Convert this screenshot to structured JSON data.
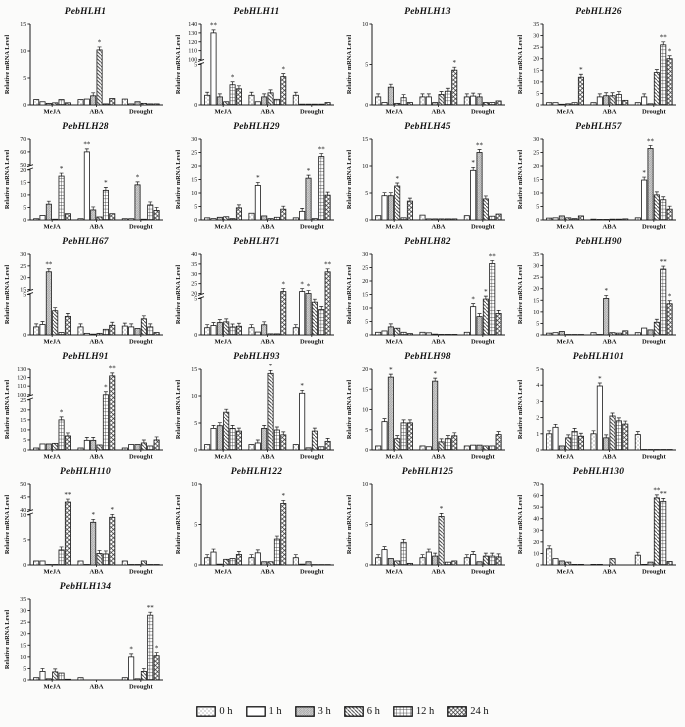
{
  "figure": {
    "y_axis_label": "Relative mRNA Level",
    "treatments": [
      "MeJA",
      "ABA",
      "Drought"
    ],
    "timepoints": [
      "0 h",
      "1 h",
      "3 h",
      "6 h",
      "12 h",
      "24 h"
    ],
    "legend": [
      {
        "label": "0 h",
        "pattern": "dots"
      },
      {
        "label": "1 h",
        "pattern": "plain"
      },
      {
        "label": "3 h",
        "pattern": "diag"
      },
      {
        "label": "6 h",
        "pattern": "backdiag"
      },
      {
        "label": "12 h",
        "pattern": "grid"
      },
      {
        "label": "24 h",
        "pattern": "cross"
      }
    ],
    "bar_outline_color": "#1a1a1a",
    "significance_marks": [
      "*",
      "**"
    ]
  },
  "chart_data": [
    {
      "type": "bar",
      "title": "PebHLH1",
      "ylim": [
        0,
        15
      ],
      "yticks": [
        0,
        5,
        10,
        15
      ],
      "series": {
        "MeJA": [
          1.0,
          0.6,
          0.3,
          0.4,
          1.0,
          0.4
        ],
        "ABA": [
          1.0,
          1.1,
          1.7,
          10.2,
          0.2,
          1.2
        ],
        "Drought": [
          1.1,
          0.2,
          0.6,
          0.3,
          0.2,
          0.2
        ]
      },
      "sig": [
        {
          "treatment": "ABA",
          "time": "6 h",
          "mark": "*"
        }
      ]
    },
    {
      "type": "bar",
      "title": "PebHLH11",
      "axis_break": {
        "lower": [
          0,
          5
        ],
        "upper": [
          100,
          140
        ],
        "lower_ticks": [
          0,
          5
        ],
        "upper_ticks": [
          100,
          110,
          120,
          130,
          140
        ],
        "lower_frac": 0.5
      },
      "series": {
        "MeJA": [
          1.2,
          130,
          1.0,
          0.4,
          2.5,
          2.0
        ],
        "ABA": [
          1.2,
          0.4,
          1.0,
          1.5,
          0.7,
          3.5
        ],
        "Drought": [
          1.2,
          0.1,
          0.1,
          0.1,
          0.1,
          0.3
        ]
      },
      "sig": [
        {
          "treatment": "MeJA",
          "time": "1 h",
          "mark": "**"
        },
        {
          "treatment": "MeJA",
          "time": "12 h",
          "mark": "*"
        },
        {
          "treatment": "ABA",
          "time": "24 h",
          "mark": "*"
        }
      ]
    },
    {
      "type": "bar",
      "title": "PebHLH13",
      "ylim": [
        0,
        10
      ],
      "yticks": [
        0,
        5,
        10
      ],
      "series": {
        "MeJA": [
          1.0,
          0.3,
          2.2,
          0.2,
          0.9,
          0.3
        ],
        "ABA": [
          1.0,
          1.0,
          0.3,
          1.3,
          1.7,
          4.3
        ],
        "Drought": [
          1.0,
          1.1,
          1.0,
          0.3,
          0.3,
          0.5
        ]
      },
      "sig": [
        {
          "treatment": "ABA",
          "time": "24 h",
          "mark": "*"
        }
      ]
    },
    {
      "type": "bar",
      "title": "PebHLH26",
      "ylim": [
        0,
        35
      ],
      "yticks": [
        0,
        5,
        10,
        15,
        20,
        25,
        30,
        35
      ],
      "series": {
        "MeJA": [
          1.0,
          1.0,
          0.3,
          0.5,
          1.0,
          12.0
        ],
        "ABA": [
          1.0,
          3.5,
          4.0,
          4.0,
          4.5,
          2.0
        ],
        "Drought": [
          1.0,
          3.5,
          0.5,
          14.0,
          26.0,
          20.0
        ]
      },
      "sig": [
        {
          "treatment": "MeJA",
          "time": "24 h",
          "mark": "*"
        },
        {
          "treatment": "Drought",
          "time": "12 h",
          "mark": "**"
        },
        {
          "treatment": "Drought",
          "time": "24 h",
          "mark": "*"
        }
      ]
    },
    {
      "type": "bar",
      "title": "PebHLH28",
      "axis_break": {
        "lower": [
          0,
          20
        ],
        "upper": [
          50,
          70
        ],
        "lower_ticks": [
          0,
          5,
          10,
          15,
          20
        ],
        "upper_ticks": [
          50,
          60,
          70
        ],
        "lower_frac": 0.62
      },
      "series": {
        "MeJA": [
          0.5,
          1.8,
          6.3,
          0.3,
          17.5,
          2.5
        ],
        "ABA": [
          0.5,
          60.0,
          4.0,
          1.2,
          11.8,
          2.5
        ],
        "Drought": [
          0.5,
          0.5,
          14.0,
          0.3,
          6.0,
          3.8
        ]
      },
      "sig": [
        {
          "treatment": "MeJA",
          "time": "12 h",
          "mark": "*"
        },
        {
          "treatment": "ABA",
          "time": "1 h",
          "mark": "**"
        },
        {
          "treatment": "ABA",
          "time": "12 h",
          "mark": "*"
        },
        {
          "treatment": "Drought",
          "time": "3 h",
          "mark": "*"
        }
      ]
    },
    {
      "type": "bar",
      "title": "PebHLH29",
      "ylim": [
        0,
        30
      ],
      "yticks": [
        0,
        5,
        10,
        15,
        20,
        25,
        30
      ],
      "series": {
        "MeJA": [
          0.8,
          0.5,
          1.0,
          1.2,
          0.5,
          4.5
        ],
        "ABA": [
          2.5,
          12.8,
          1.5,
          0.5,
          1.0,
          4.0
        ],
        "Drought": [
          0.8,
          3.2,
          15.5,
          0.5,
          23.5,
          9.2
        ]
      },
      "sig": [
        {
          "treatment": "ABA",
          "time": "1 h",
          "mark": "*"
        },
        {
          "treatment": "Drought",
          "time": "3 h",
          "mark": "*"
        },
        {
          "treatment": "Drought",
          "time": "12 h",
          "mark": "**"
        }
      ]
    },
    {
      "type": "bar",
      "title": "PebHLH45",
      "ylim": [
        0,
        15
      ],
      "yticks": [
        0,
        5,
        10,
        15
      ],
      "series": {
        "MeJA": [
          0.8,
          4.5,
          4.5,
          6.3,
          0.4,
          3.5
        ],
        "ABA": [
          0.9,
          0.2,
          0.2,
          0.2,
          0.2,
          0.2
        ],
        "Drought": [
          0.8,
          9.2,
          12.5,
          3.9,
          0.7,
          1.1
        ]
      },
      "sig": [
        {
          "treatment": "MeJA",
          "time": "6 h",
          "mark": "*"
        },
        {
          "treatment": "Drought",
          "time": "1 h",
          "mark": "*"
        },
        {
          "treatment": "Drought",
          "time": "3 h",
          "mark": "**"
        }
      ]
    },
    {
      "type": "bar",
      "title": "PebHLH57",
      "ylim": [
        0,
        30
      ],
      "yticks": [
        0,
        5,
        10,
        15,
        20,
        25,
        30
      ],
      "series": {
        "MeJA": [
          0.7,
          0.8,
          1.5,
          0.8,
          0.5,
          1.5
        ],
        "ABA": [
          0.3,
          0.2,
          0.2,
          0.3,
          0.3,
          0.4
        ],
        "Drought": [
          0.8,
          14.8,
          26.5,
          9.3,
          7.5,
          4.0
        ]
      },
      "sig": [
        {
          "treatment": "Drought",
          "time": "1 h",
          "mark": "*"
        },
        {
          "treatment": "Drought",
          "time": "3 h",
          "mark": "**"
        }
      ]
    },
    {
      "type": "bar",
      "title": "PebHLH67",
      "axis_break": {
        "lower": [
          0,
          5
        ],
        "upper": [
          15,
          30
        ],
        "lower_ticks": [
          0,
          5
        ],
        "upper_ticks": [
          15,
          20,
          25,
          30
        ],
        "lower_frac": 0.5
      },
      "series": {
        "MeJA": [
          1.0,
          1.3,
          22.5,
          3.0,
          0.3,
          2.3
        ],
        "ABA": [
          1.0,
          0.2,
          0.1,
          0.2,
          0.7,
          1.2
        ],
        "Drought": [
          1.1,
          1.0,
          0.8,
          2.0,
          1.0,
          0.3
        ]
      },
      "sig": [
        {
          "treatment": "MeJA",
          "time": "3 h",
          "mark": "**"
        }
      ]
    },
    {
      "type": "bar",
      "title": "PebHLH71",
      "axis_break": {
        "lower": [
          0,
          5
        ],
        "upper": [
          20,
          40
        ],
        "lower_ticks": [
          0,
          5
        ],
        "upper_ticks": [
          20,
          25,
          30,
          35,
          40
        ],
        "lower_frac": 0.45
      },
      "series": {
        "MeJA": [
          1.0,
          1.3,
          1.7,
          1.8,
          1.1,
          1.2
        ],
        "ABA": [
          1.0,
          0.4,
          1.4,
          0.15,
          0.15,
          21.0
        ],
        "Drought": [
          1.0,
          21.0,
          19.5,
          4.5,
          3.5,
          31.0
        ]
      },
      "sig": [
        {
          "treatment": "ABA",
          "time": "24 h",
          "mark": "*"
        },
        {
          "treatment": "Drought",
          "time": "1 h",
          "mark": "*"
        },
        {
          "treatment": "Drought",
          "time": "3 h",
          "mark": "*"
        },
        {
          "treatment": "Drought",
          "time": "24 h",
          "mark": "**"
        }
      ]
    },
    {
      "type": "bar",
      "title": "PebHLH82",
      "ylim": [
        0,
        30
      ],
      "yticks": [
        0,
        5,
        10,
        15,
        20,
        25,
        30
      ],
      "series": {
        "MeJA": [
          1.0,
          1.5,
          3.0,
          2.5,
          1.0,
          0.5
        ],
        "ABA": [
          1.0,
          0.8,
          0.3,
          0.2,
          0.2,
          0.2
        ],
        "Drought": [
          1.0,
          10.5,
          6.8,
          13.3,
          26.5,
          8.0
        ]
      },
      "sig": [
        {
          "treatment": "Drought",
          "time": "1 h",
          "mark": "*"
        },
        {
          "treatment": "Drought",
          "time": "6 h",
          "mark": "*"
        },
        {
          "treatment": "Drought",
          "time": "12 h",
          "mark": "**"
        }
      ]
    },
    {
      "type": "bar",
      "title": "PebHLH90",
      "ylim": [
        0,
        35
      ],
      "yticks": [
        0,
        5,
        10,
        15,
        20,
        25,
        30,
        35
      ],
      "series": {
        "MeJA": [
          0.8,
          1.0,
          1.5,
          0.2,
          0.2,
          0.2
        ],
        "ABA": [
          1.0,
          0.2,
          15.8,
          1.0,
          0.8,
          1.8
        ],
        "Drought": [
          1.0,
          3.0,
          2.2,
          5.5,
          28.5,
          13.5
        ]
      },
      "sig": [
        {
          "treatment": "ABA",
          "time": "3 h",
          "mark": "*"
        },
        {
          "treatment": "Drought",
          "time": "12 h",
          "mark": "**"
        },
        {
          "treatment": "Drought",
          "time": "24 h",
          "mark": "*"
        }
      ]
    },
    {
      "type": "bar",
      "title": "PebHLH91",
      "axis_break": {
        "lower": [
          0,
          25
        ],
        "upper": [
          100,
          130
        ],
        "lower_ticks": [
          0,
          5,
          10,
          15,
          20,
          25
        ],
        "upper_ticks": [
          100,
          110,
          120,
          130
        ],
        "lower_frac": 0.62
      },
      "series": {
        "MeJA": [
          1.0,
          3.0,
          3.0,
          3.3,
          15.0,
          7.0
        ],
        "ABA": [
          1.0,
          4.8,
          4.8,
          2.5,
          100.0,
          122.0
        ],
        "Drought": [
          1.0,
          2.7,
          2.7,
          3.5,
          2.0,
          5.0
        ]
      },
      "sig": [
        {
          "treatment": "MeJA",
          "time": "12 h",
          "mark": "*"
        },
        {
          "treatment": "ABA",
          "time": "12 h",
          "mark": "*"
        },
        {
          "treatment": "ABA",
          "time": "24 h",
          "mark": "**"
        }
      ]
    },
    {
      "type": "bar",
      "title": "PebHLH93",
      "ylim": [
        0,
        15
      ],
      "yticks": [
        0,
        5,
        10,
        15
      ],
      "series": {
        "MeJA": [
          1.0,
          4.0,
          4.5,
          7.0,
          4.0,
          3.5
        ],
        "ABA": [
          1.0,
          1.3,
          4.0,
          14.2,
          3.7,
          2.8
        ],
        "Drought": [
          1.0,
          10.5,
          0.4,
          3.5,
          0.6,
          1.6
        ]
      },
      "sig": [
        {
          "treatment": "ABA",
          "time": "6 h",
          "mark": "*"
        },
        {
          "treatment": "Drought",
          "time": "1 h",
          "mark": "*"
        }
      ]
    },
    {
      "type": "bar",
      "title": "PebHLH98",
      "ylim": [
        0,
        20
      ],
      "yticks": [
        0,
        5,
        10,
        15,
        20
      ],
      "series": {
        "MeJA": [
          1.0,
          7.0,
          18.0,
          2.8,
          6.7,
          6.7
        ],
        "ABA": [
          1.0,
          0.8,
          17.0,
          2.0,
          2.8,
          3.5
        ],
        "Drought": [
          1.0,
          1.2,
          1.2,
          1.0,
          1.0,
          3.8
        ]
      },
      "sig": [
        {
          "treatment": "MeJA",
          "time": "3 h",
          "mark": "*"
        },
        {
          "treatment": "ABA",
          "time": "3 h",
          "mark": "*"
        }
      ]
    },
    {
      "type": "bar",
      "title": "PebHLH101",
      "ylim": [
        0,
        5
      ],
      "yticks": [
        0,
        1,
        2,
        3,
        4,
        5
      ],
      "series": {
        "MeJA": [
          1.0,
          1.4,
          0.25,
          0.75,
          1.15,
          0.85
        ],
        "ABA": [
          1.0,
          3.95,
          0.75,
          2.1,
          1.8,
          1.6
        ],
        "Drought": [
          0.95,
          0.03,
          0.03,
          0.03,
          0.03,
          0.03
        ]
      },
      "sig": [
        {
          "treatment": "ABA",
          "time": "1 h",
          "mark": "*"
        }
      ]
    },
    {
      "type": "bar",
      "title": "PebHLH110",
      "axis_break": {
        "lower": [
          0,
          10
        ],
        "upper": [
          40,
          50
        ],
        "lower_ticks": [
          0,
          5,
          10
        ],
        "upper_ticks": [
          40,
          45,
          50
        ],
        "lower_frac": 0.62
      },
      "series": {
        "MeJA": [
          0.8,
          0.8,
          0.1,
          0.1,
          3.0,
          43.0
        ],
        "ABA": [
          0.8,
          0.1,
          8.5,
          2.3,
          2.2,
          9.5
        ],
        "Drought": [
          0.8,
          0.1,
          0.1,
          0.8,
          0.1,
          0.1
        ]
      },
      "sig": [
        {
          "treatment": "MeJA",
          "time": "24 h",
          "mark": "**"
        },
        {
          "treatment": "ABA",
          "time": "3 h",
          "mark": "*"
        },
        {
          "treatment": "ABA",
          "time": "24 h",
          "mark": "*"
        }
      ]
    },
    {
      "type": "bar",
      "title": "PebHLH122",
      "ylim": [
        0,
        10
      ],
      "yticks": [
        0,
        5,
        10
      ],
      "series": {
        "MeJA": [
          0.9,
          1.6,
          0.1,
          0.7,
          0.8,
          1.3
        ],
        "ABA": [
          0.9,
          1.5,
          0.4,
          0.4,
          3.2,
          7.6
        ],
        "Drought": [
          0.9,
          0.1,
          0.4,
          0.05,
          0.05,
          0.05
        ]
      },
      "sig": [
        {
          "treatment": "ABA",
          "time": "24 h",
          "mark": "*"
        }
      ]
    },
    {
      "type": "bar",
      "title": "PebHLH125",
      "ylim": [
        0,
        10
      ],
      "yticks": [
        0,
        5,
        10
      ],
      "series": {
        "MeJA": [
          0.9,
          1.9,
          0.8,
          0.5,
          2.8,
          0.2
        ],
        "ABA": [
          0.9,
          1.6,
          1.1,
          6.0,
          0.35,
          0.5
        ],
        "Drought": [
          0.9,
          1.3,
          0.4,
          1.1,
          1.1,
          1.0
        ]
      },
      "sig": [
        {
          "treatment": "ABA",
          "time": "6 h",
          "mark": "*"
        }
      ]
    },
    {
      "type": "bar",
      "title": "PebHLH130",
      "ylim": [
        0,
        70
      ],
      "yticks": [
        0,
        10,
        20,
        30,
        40,
        50,
        60,
        70
      ],
      "series": {
        "MeJA": [
          14.0,
          5.5,
          3.5,
          2.5,
          0.5,
          0.5
        ],
        "ABA": [
          0.5,
          0.5,
          0.3,
          5.5,
          0.3,
          0.3
        ],
        "Drought": [
          8.5,
          0.5,
          2.5,
          58.0,
          55.0,
          3.0
        ]
      },
      "sig": [
        {
          "treatment": "Drought",
          "time": "6 h",
          "mark": "**"
        },
        {
          "treatment": "Drought",
          "time": "12 h",
          "mark": "**"
        }
      ]
    },
    {
      "type": "bar",
      "title": "PebHLH134",
      "ylim": [
        0,
        35
      ],
      "yticks": [
        0,
        5,
        10,
        15,
        20,
        25,
        30,
        35
      ],
      "series": {
        "MeJA": [
          1.0,
          3.7,
          0.5,
          3.5,
          3.0,
          0.3
        ],
        "ABA": [
          1.0,
          0.05,
          0.05,
          0.05,
          0.05,
          0.05
        ],
        "Drought": [
          1.0,
          10.0,
          0.5,
          3.7,
          28.0,
          10.5
        ]
      },
      "sig": [
        {
          "treatment": "Drought",
          "time": "1 h",
          "mark": "*"
        },
        {
          "treatment": "Drought",
          "time": "12 h",
          "mark": "**"
        },
        {
          "treatment": "Drought",
          "time": "24 h",
          "mark": "*"
        }
      ]
    }
  ]
}
